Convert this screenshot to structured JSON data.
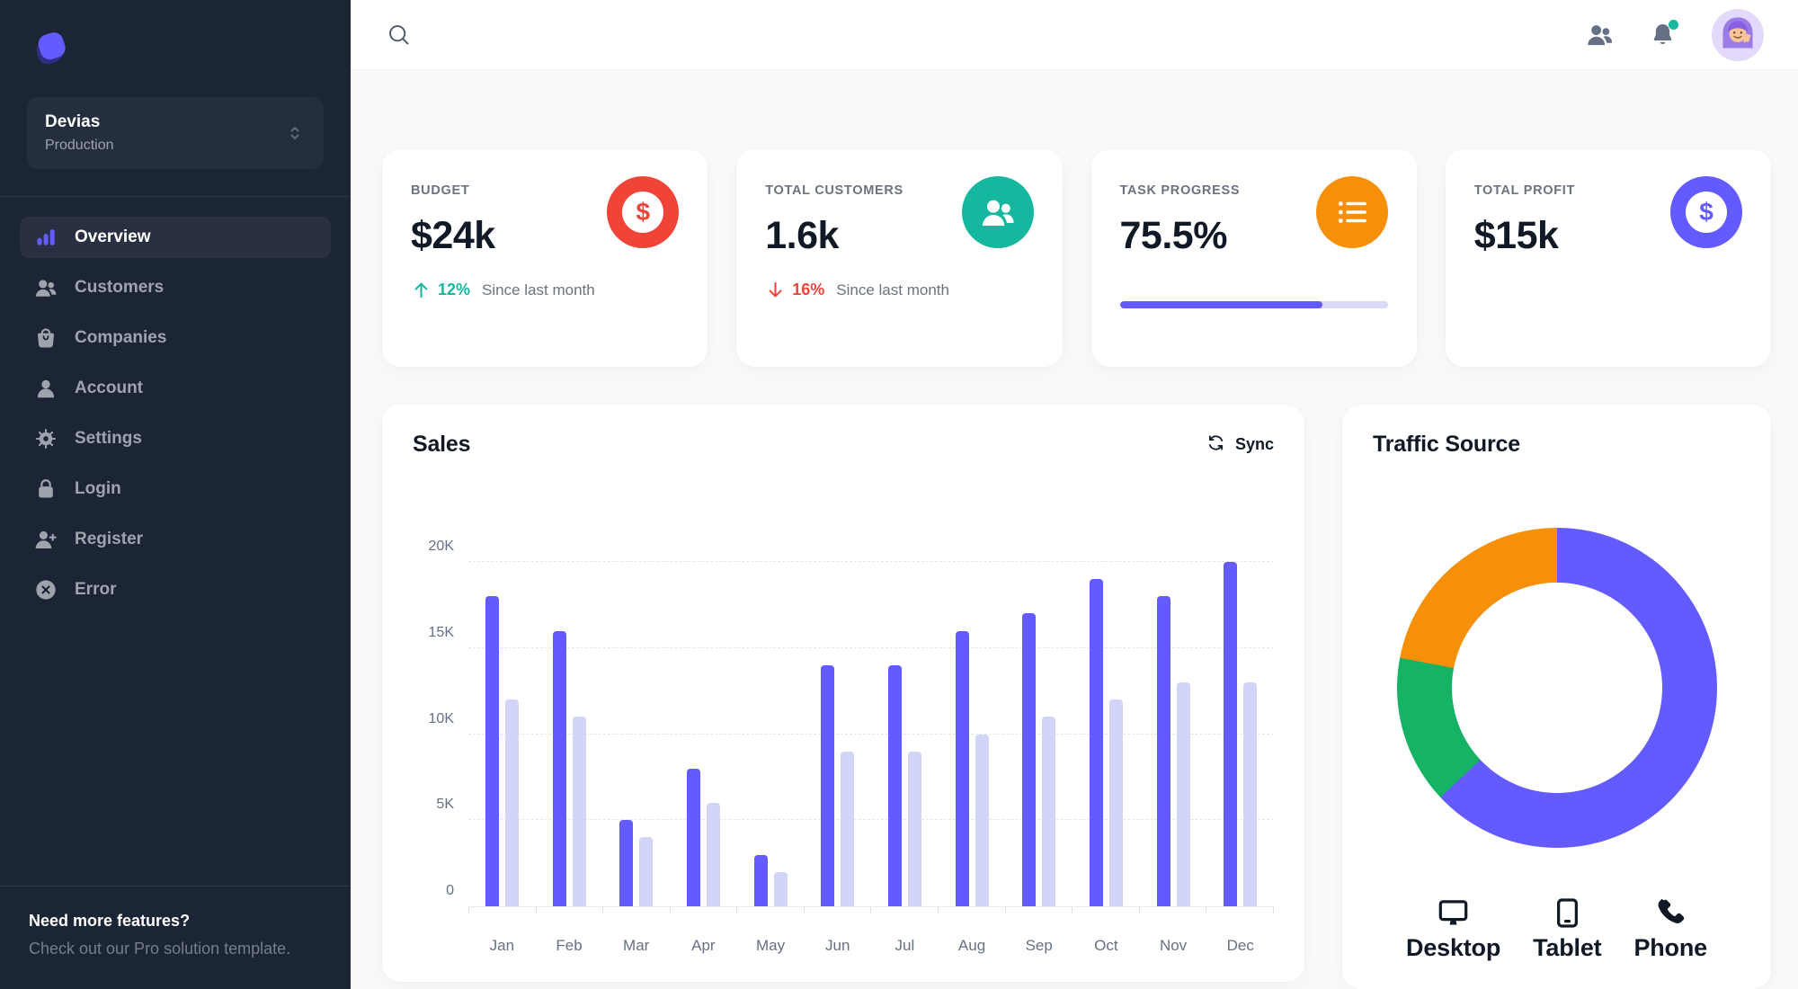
{
  "app": {
    "accent_color": "#635BFF"
  },
  "sidebar": {
    "logo_icon": "devias-logo",
    "workspace": {
      "label": "Devias",
      "environment": "Production",
      "selector_icon": "chevron-up-down-icon"
    },
    "nav": [
      {
        "label": "Overview",
        "icon": "chart-bar",
        "active": true
      },
      {
        "label": "Customers",
        "icon": "users",
        "active": false
      },
      {
        "label": "Companies",
        "icon": "shopping-bag",
        "active": false
      },
      {
        "label": "Account",
        "icon": "user",
        "active": false
      },
      {
        "label": "Settings",
        "icon": "gear",
        "active": false
      },
      {
        "label": "Login",
        "icon": "lock",
        "active": false
      },
      {
        "label": "Register",
        "icon": "user-plus",
        "active": false
      },
      {
        "label": "Error",
        "icon": "x-circle",
        "active": false
      }
    ],
    "footer": {
      "title": "Need more features?",
      "subtitle": "Check out our Pro solution template."
    }
  },
  "header": {
    "icons": {
      "search": "search-icon",
      "contacts": "users-icon",
      "notifications": "bell-icon"
    },
    "notification_badge_color": "#15B79E",
    "avatar": "avatar-image"
  },
  "stats": {
    "cards": [
      {
        "label": "BUDGET",
        "value": "$24k",
        "icon": "currency-dollar",
        "icon_bg": "#F04438",
        "trend": {
          "direction": "up",
          "value": "12%",
          "color": "#15B79E",
          "caption": "Since last month"
        }
      },
      {
        "label": "TOTAL CUSTOMERS",
        "value": "1.6k",
        "icon": "users",
        "icon_bg": "#15B79E",
        "trend": {
          "direction": "down",
          "value": "16%",
          "color": "#F04438",
          "caption": "Since last month"
        }
      },
      {
        "label": "TASK PROGRESS",
        "value": "75.5%",
        "icon": "list-bullets",
        "icon_bg": "#F79009",
        "progress_percent": 75.5,
        "progress_fill": "#635BFF",
        "progress_track": "#DCDAFB"
      },
      {
        "label": "TOTAL PROFIT",
        "value": "$15k",
        "icon": "currency-dollar",
        "icon_bg": "#635BFF"
      }
    ]
  },
  "sales_card": {
    "title": "Sales",
    "sync_label": "Sync",
    "sync_icon": "arrows-clockwise-icon"
  },
  "traffic_card": {
    "title": "Traffic Source",
    "legend": [
      {
        "label": "Desktop",
        "icon": "desktop"
      },
      {
        "label": "Tablet",
        "icon": "tablet"
      },
      {
        "label": "Phone",
        "icon": "phone"
      }
    ]
  },
  "chart_data": [
    {
      "type": "bar",
      "title": "Sales",
      "categories": [
        "Jan",
        "Feb",
        "Mar",
        "Apr",
        "May",
        "Jun",
        "Jul",
        "Aug",
        "Sep",
        "Oct",
        "Nov",
        "Dec"
      ],
      "series": [
        {
          "name": "primary",
          "color": "#635BFF",
          "values": [
            18000,
            16000,
            5000,
            8000,
            3000,
            14000,
            14000,
            16000,
            17000,
            19000,
            18000,
            20000
          ]
        },
        {
          "name": "secondary",
          "color": "#D2D4F9",
          "values": [
            12000,
            11000,
            4000,
            6000,
            2000,
            9000,
            9000,
            10000,
            11000,
            12000,
            13000,
            13000
          ]
        }
      ],
      "ylim": [
        0,
        20000
      ],
      "yticks": [
        0,
        5000,
        10000,
        15000,
        20000
      ],
      "ytick_labels": [
        "0",
        "5K",
        "10K",
        "15K",
        "20K"
      ],
      "grid": "dashed-horizontal",
      "legend_position": "none-visible"
    },
    {
      "type": "donut",
      "title": "Traffic Source",
      "segments": [
        {
          "label": "Desktop",
          "value": 63,
          "color": "#635BFF"
        },
        {
          "label": "Tablet",
          "value": 15,
          "color": "#16B364"
        },
        {
          "label": "Phone",
          "value": 22,
          "color": "#F79009"
        }
      ],
      "legend_position": "bottom"
    }
  ]
}
